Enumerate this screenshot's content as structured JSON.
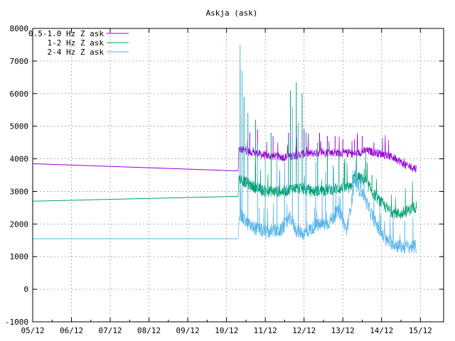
{
  "chart_data": {
    "type": "line",
    "title": "Askja (ask)",
    "xlabel": "",
    "ylabel": "",
    "x_ticks": [
      "05/12",
      "06/12",
      "07/12",
      "08/12",
      "09/12",
      "10/12",
      "11/12",
      "12/12",
      "13/12",
      "14/12",
      "15/12"
    ],
    "x_range_days": [
      0,
      10.6
    ],
    "ylim": [
      -1000,
      8000
    ],
    "y_ticks": [
      -1000,
      0,
      1000,
      2000,
      3000,
      4000,
      5000,
      6000,
      7000,
      8000
    ],
    "grid": true,
    "legend_position": "top-left",
    "series": [
      {
        "name": "0.5-1.0 Hz Z ask",
        "color": "#9400d3",
        "gap": {
          "from": [
            0,
            3850
          ],
          "to": [
            5.3,
            3630
          ]
        },
        "baseline": [
          [
            5.32,
            4300
          ],
          [
            6.0,
            4100
          ],
          [
            6.5,
            4050
          ],
          [
            7.0,
            4150
          ],
          [
            7.5,
            4200
          ],
          [
            8.0,
            4180
          ],
          [
            8.3,
            4150
          ],
          [
            8.6,
            4250
          ],
          [
            9.0,
            4150
          ],
          [
            9.4,
            4000
          ],
          [
            9.6,
            3800
          ],
          [
            9.9,
            3700
          ]
        ],
        "noise": 130,
        "spikes": [
          [
            5.4,
            5300
          ],
          [
            5.6,
            4800
          ],
          [
            5.8,
            4900
          ],
          [
            6.2,
            4700
          ],
          [
            6.6,
            4800
          ],
          [
            6.8,
            5000
          ],
          [
            7.0,
            4900
          ],
          [
            7.4,
            4800
          ],
          [
            7.6,
            4700
          ],
          [
            7.8,
            4700
          ],
          [
            8.0,
            4600
          ],
          [
            8.3,
            4600
          ],
          [
            8.5,
            4700
          ],
          [
            8.8,
            4500
          ]
        ]
      },
      {
        "name": "1-2 Hz Z ask",
        "color": "#009e73",
        "gap": {
          "from": [
            0,
            2700
          ],
          "to": [
            5.3,
            2850
          ]
        },
        "baseline": [
          [
            5.32,
            3400
          ],
          [
            5.6,
            3200
          ],
          [
            6.0,
            3000
          ],
          [
            6.5,
            3000
          ],
          [
            6.7,
            3100
          ],
          [
            6.9,
            3100
          ],
          [
            7.2,
            3000
          ],
          [
            7.6,
            3050
          ],
          [
            8.0,
            3100
          ],
          [
            8.2,
            3100
          ],
          [
            8.3,
            3500
          ],
          [
            8.6,
            3300
          ],
          [
            8.8,
            2900
          ],
          [
            9.2,
            2400
          ],
          [
            9.5,
            2300
          ],
          [
            9.9,
            2550
          ]
        ],
        "noise": 180,
        "spikes": [
          [
            5.35,
            6750
          ],
          [
            5.45,
            5900
          ],
          [
            5.55,
            5400
          ],
          [
            5.75,
            5200
          ],
          [
            6.15,
            4800
          ],
          [
            6.6,
            4600
          ],
          [
            6.65,
            6100
          ],
          [
            6.8,
            6350
          ],
          [
            6.95,
            6000
          ],
          [
            7.05,
            4800
          ],
          [
            7.35,
            4500
          ],
          [
            7.6,
            4400
          ],
          [
            7.9,
            4200
          ],
          [
            8.05,
            4000
          ],
          [
            8.35,
            4100
          ],
          [
            8.55,
            3700
          ],
          [
            8.75,
            3500
          ]
        ]
      },
      {
        "name": "2-4 Hz Z ask",
        "color": "#56b4e9",
        "gap": {
          "from": [
            0,
            1550
          ],
          "to": [
            5.3,
            1550
          ]
        },
        "baseline": [
          [
            5.32,
            2300
          ],
          [
            5.6,
            1950
          ],
          [
            6.0,
            1750
          ],
          [
            6.4,
            1800
          ],
          [
            6.65,
            2200
          ],
          [
            6.8,
            1800
          ],
          [
            7.0,
            1700
          ],
          [
            7.3,
            1950
          ],
          [
            7.6,
            2000
          ],
          [
            7.9,
            2400
          ],
          [
            8.1,
            1800
          ],
          [
            8.3,
            3200
          ],
          [
            8.5,
            3000
          ],
          [
            8.7,
            2400
          ],
          [
            8.9,
            1900
          ],
          [
            9.1,
            1500
          ],
          [
            9.5,
            1300
          ],
          [
            9.9,
            1300
          ]
        ],
        "noise": 220,
        "spikes": [
          [
            5.35,
            7500
          ],
          [
            5.4,
            6700
          ],
          [
            5.55,
            5300
          ],
          [
            5.8,
            4500
          ],
          [
            6.0,
            4000
          ],
          [
            6.3,
            4200
          ],
          [
            6.5,
            3900
          ],
          [
            6.7,
            5600
          ],
          [
            6.85,
            5100
          ],
          [
            7.05,
            4300
          ],
          [
            7.3,
            3900
          ],
          [
            7.55,
            3600
          ],
          [
            7.75,
            3800
          ],
          [
            8.0,
            3400
          ],
          [
            8.35,
            3600
          ],
          [
            8.55,
            3200
          ],
          [
            8.8,
            2700
          ],
          [
            9.3,
            2300
          ],
          [
            9.6,
            2100
          ]
        ]
      }
    ]
  }
}
